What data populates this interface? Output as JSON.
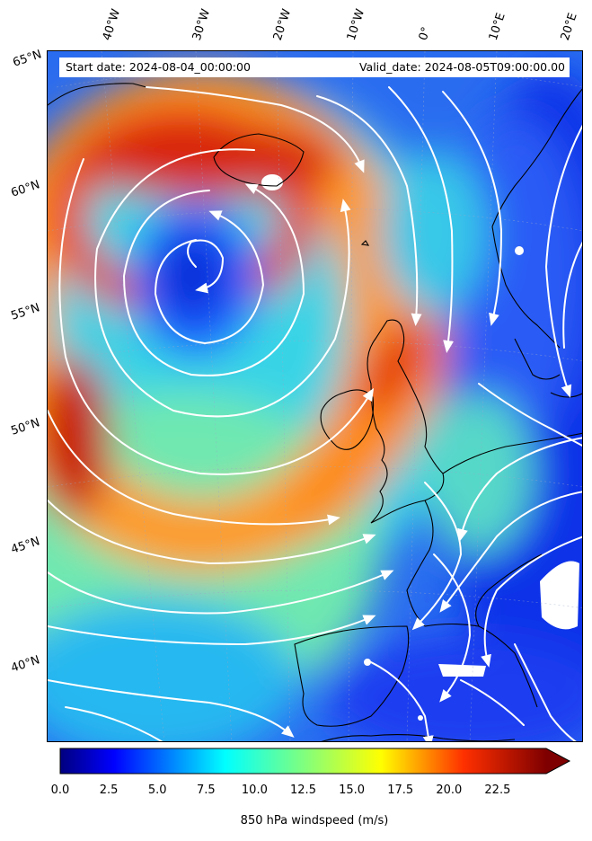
{
  "header": {
    "start_date": "Start date: 2024-08-04_00:00:00",
    "valid_date": "Valid_date: 2024-08-05T09:00:00.00"
  },
  "map": {
    "variable": "850 hPa windspeed",
    "lon_labels": [
      "40°W",
      "30°W",
      "20°W",
      "10°W",
      "0°",
      "10°E",
      "20°E"
    ],
    "lat_labels": [
      "65°N",
      "60°N",
      "55°N",
      "50°N",
      "45°N",
      "40°N"
    ],
    "colormap": [
      "#00007f",
      "#0000ff",
      "#007fff",
      "#00ffff",
      "#7fff7f",
      "#ffff00",
      "#ff7f00",
      "#ff0000",
      "#7f0000"
    ],
    "streamline_color": "#ffffff",
    "coastline_color": "#000000"
  },
  "colorbar": {
    "ticks": [
      "0.0",
      "2.5",
      "5.0",
      "7.5",
      "10.0",
      "12.5",
      "15.0",
      "17.5",
      "20.0",
      "22.5"
    ],
    "range": [
      0,
      25
    ],
    "label": "850 hPa windspeed (m/s)"
  }
}
